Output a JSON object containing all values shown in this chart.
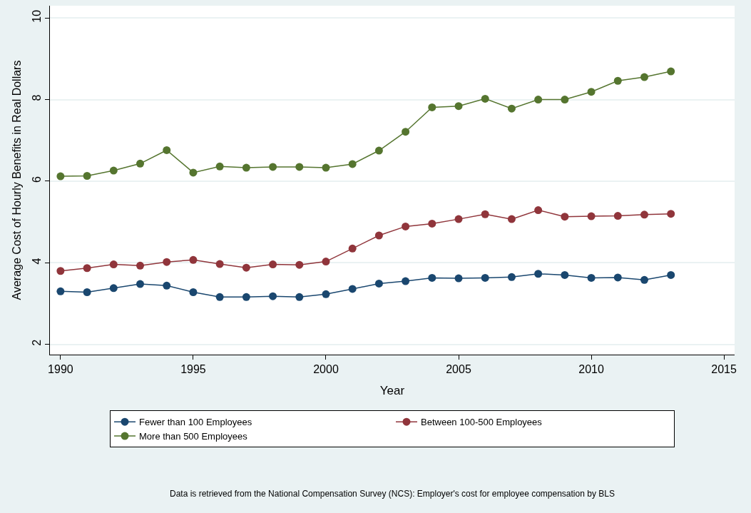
{
  "chart_data": {
    "type": "line",
    "xlabel": "Year",
    "ylabel": "Average Cost of Hourly Benefits in Real Dollars",
    "x": [
      1990,
      1991,
      1992,
      1993,
      1994,
      1995,
      1996,
      1997,
      1998,
      1999,
      2000,
      2001,
      2002,
      2003,
      2004,
      2005,
      2006,
      2007,
      2008,
      2009,
      2010,
      2011,
      2012,
      2013
    ],
    "series": [
      {
        "name": "Fewer than 100 Employees",
        "color": "#1a476f",
        "values": [
          3.3,
          3.28,
          3.38,
          3.48,
          3.44,
          3.28,
          3.16,
          3.16,
          3.18,
          3.16,
          3.23,
          3.36,
          3.49,
          3.55,
          3.63,
          3.62,
          3.63,
          3.65,
          3.73,
          3.7,
          3.63,
          3.64,
          3.58,
          3.7
        ]
      },
      {
        "name": "Between 100-500 Employees",
        "color": "#90353b",
        "values": [
          3.8,
          3.87,
          3.96,
          3.93,
          4.02,
          4.07,
          3.97,
          3.88,
          3.96,
          3.95,
          4.03,
          4.35,
          4.67,
          4.89,
          4.96,
          5.07,
          5.19,
          5.07,
          5.29,
          5.13,
          5.14,
          5.15,
          5.18,
          5.2
        ]
      },
      {
        "name": "More than 500 Employees",
        "color": "#55752f",
        "values": [
          6.12,
          6.13,
          6.26,
          6.43,
          6.76,
          6.21,
          6.36,
          6.33,
          6.35,
          6.35,
          6.33,
          6.42,
          6.75,
          7.21,
          7.81,
          7.84,
          8.02,
          7.78,
          8.0,
          8.0,
          8.19,
          8.46,
          8.55,
          8.69
        ]
      }
    ],
    "xlim": [
      1989.6,
      2015.4
    ],
    "xticks": [
      1990,
      1995,
      2000,
      2005,
      2010,
      2015
    ],
    "ylim": [
      1.75,
      10.3
    ],
    "yticks": [
      2,
      4,
      6,
      8,
      10
    ],
    "grid": "y",
    "legend": "bottom",
    "marker": "circle",
    "line_style": "solid",
    "annotations": [
      "Data is retrieved from the National Compensation Survey (NCS): Employer's cost for employee compensation by BLS"
    ]
  }
}
